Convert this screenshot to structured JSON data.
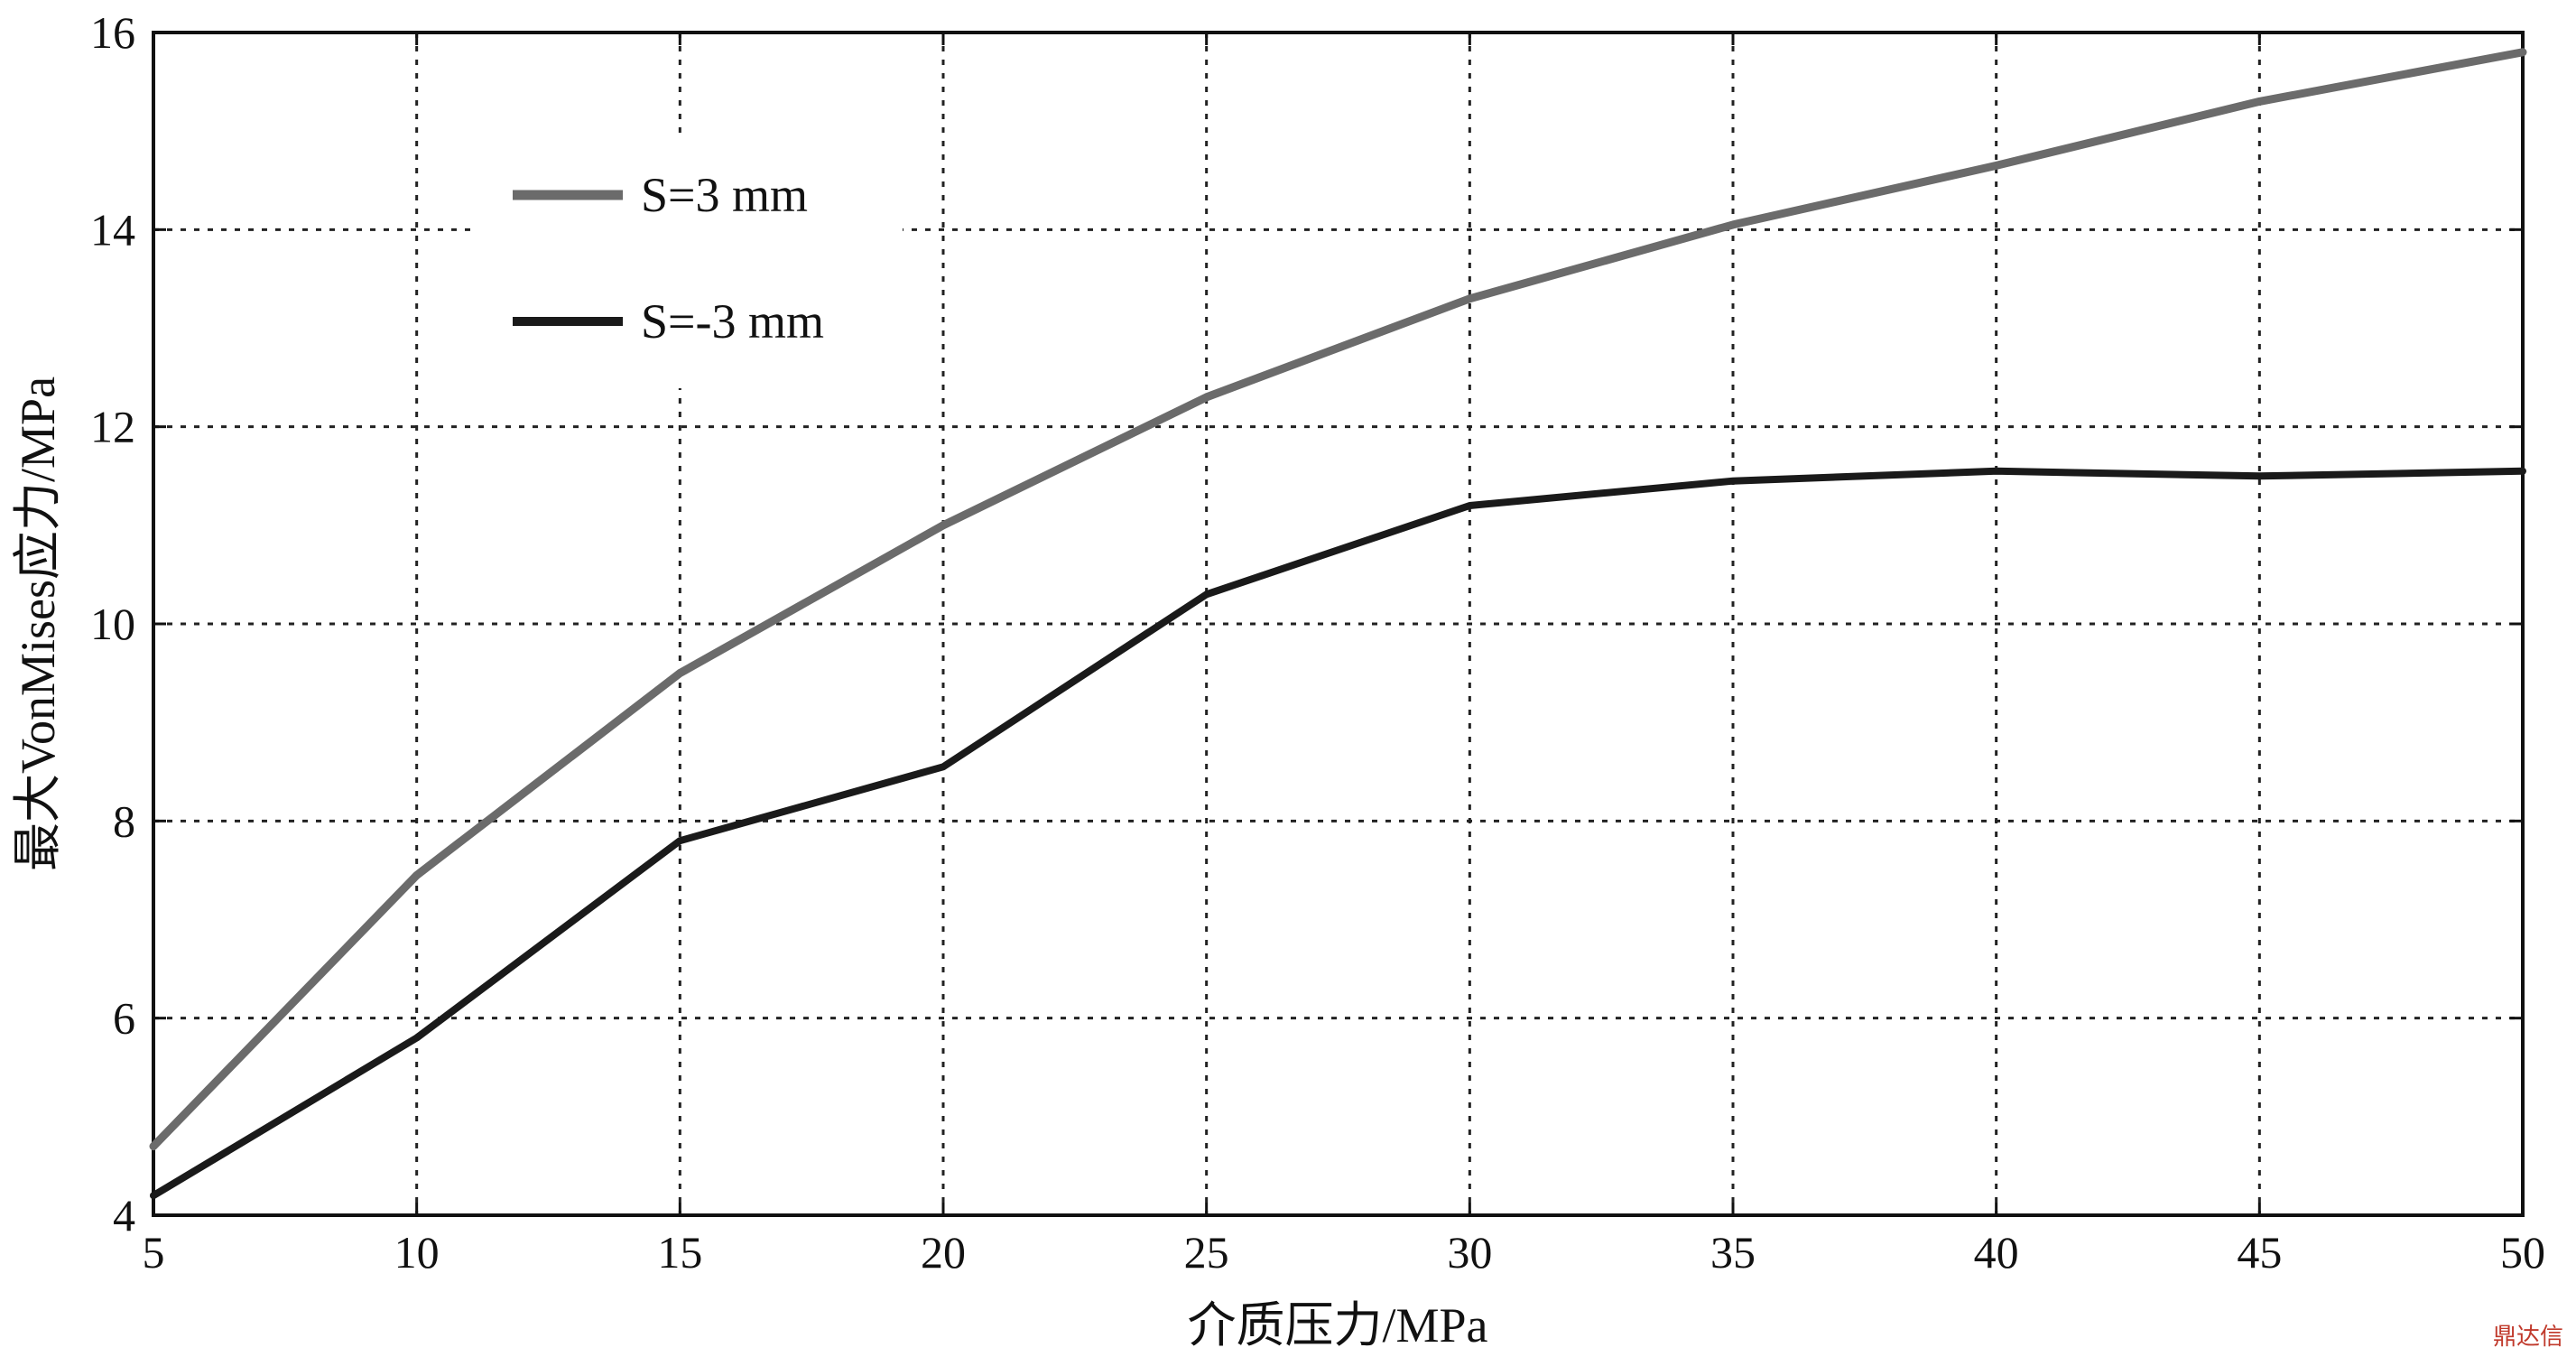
{
  "chart_data": {
    "type": "line",
    "xlabel": "介质压力/MPa",
    "ylabel": "最大VonMises应力/MPa",
    "xlim": [
      5,
      50
    ],
    "ylim": [
      4,
      16
    ],
    "xticks": [
      5,
      10,
      15,
      20,
      25,
      30,
      35,
      40,
      45,
      50
    ],
    "yticks": [
      4,
      6,
      8,
      10,
      12,
      14,
      16
    ],
    "grid": true,
    "legend_position": "top-left",
    "x": [
      5,
      10,
      15,
      20,
      25,
      30,
      35,
      40,
      45,
      50
    ],
    "series": [
      {
        "name": "S=3 mm",
        "color": "#6b6b6b",
        "values": [
          4.7,
          7.45,
          9.5,
          11.0,
          12.3,
          13.3,
          14.05,
          14.65,
          15.3,
          15.8
        ]
      },
      {
        "name": "S=-3 mm",
        "color": "#1a1a1a",
        "values": [
          4.2,
          5.8,
          7.8,
          8.55,
          10.3,
          11.2,
          11.45,
          11.55,
          11.5,
          11.55
        ]
      }
    ]
  },
  "watermark": "鼎达信"
}
